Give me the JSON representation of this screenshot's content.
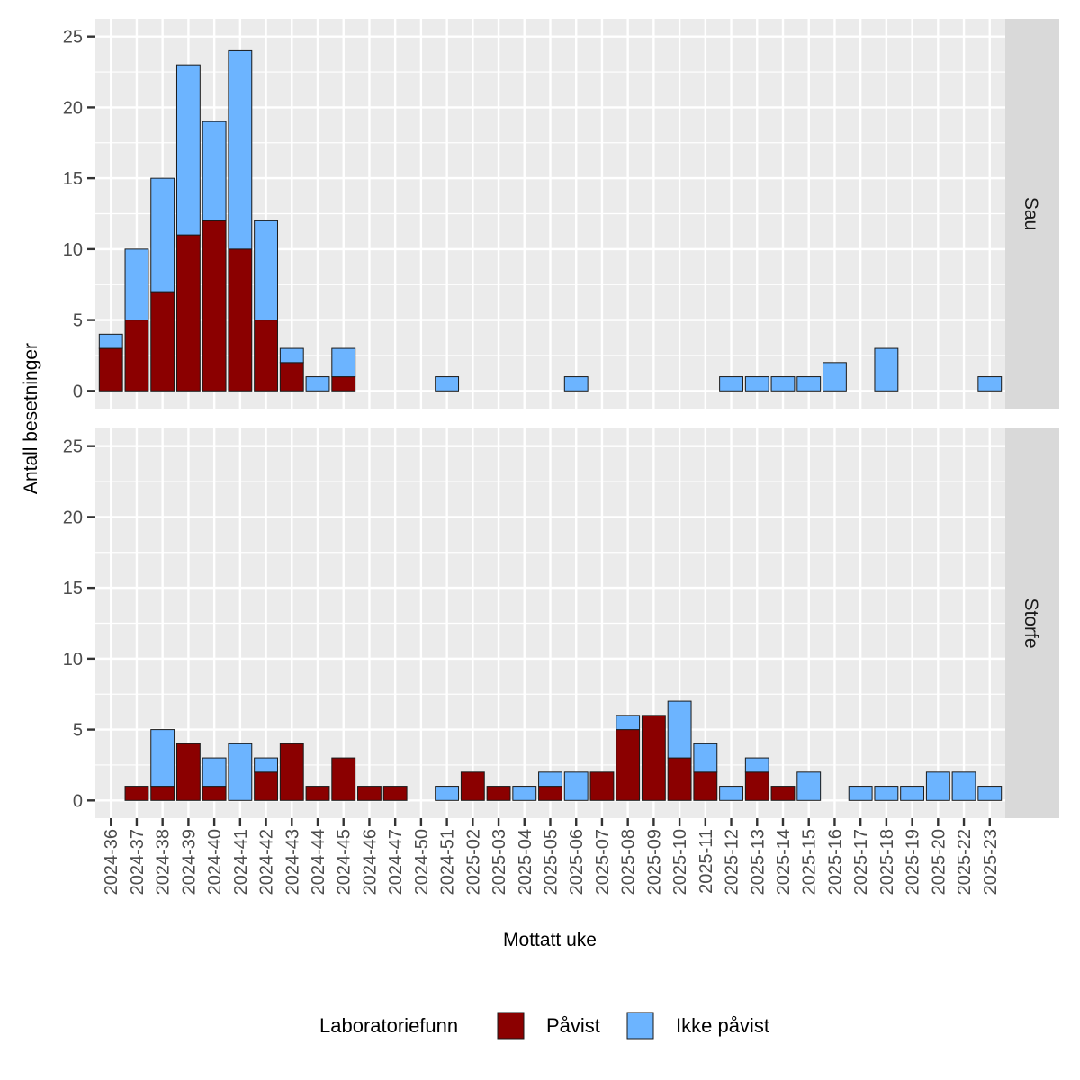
{
  "chart_data": {
    "type": "bar",
    "stacked": true,
    "xlabel": "Mottatt uke",
    "ylabel": "Antall besetninger",
    "ylim": [
      0,
      25
    ],
    "yticks": [
      0,
      5,
      10,
      15,
      20,
      25
    ],
    "grid": true,
    "categories": [
      "2024-36",
      "2024-37",
      "2024-38",
      "2024-39",
      "2024-40",
      "2024-41",
      "2024-42",
      "2024-43",
      "2024-44",
      "2024-45",
      "2024-46",
      "2024-47",
      "2024-50",
      "2024-51",
      "2025-02",
      "2025-03",
      "2025-04",
      "2025-05",
      "2025-06",
      "2025-07",
      "2025-08",
      "2025-09",
      "2025-10",
      "2025-11",
      "2025-12",
      "2025-13",
      "2025-14",
      "2025-15",
      "2025-16",
      "2025-17",
      "2025-18",
      "2025-19",
      "2025-20",
      "2025-22",
      "2025-23"
    ],
    "legend": {
      "title": "Laboratoriefunn",
      "position": "bottom",
      "entries": [
        {
          "name": "Påvist",
          "color": "#8B0000"
        },
        {
          "name": "Ikke påvist",
          "color": "#6CB4FF"
        }
      ]
    },
    "panels": [
      {
        "name": "Sau",
        "series": [
          {
            "name": "Påvist",
            "values": [
              3,
              5,
              7,
              11,
              12,
              10,
              5,
              2,
              0,
              1,
              0,
              0,
              0,
              0,
              0,
              0,
              0,
              0,
              0,
              0,
              0,
              0,
              0,
              0,
              0,
              0,
              0,
              0,
              0,
              0,
              0,
              0,
              0,
              0,
              0
            ]
          },
          {
            "name": "Ikke påvist",
            "values": [
              1,
              5,
              8,
              12,
              7,
              14,
              7,
              1,
              1,
              2,
              0,
              0,
              0,
              1,
              0,
              0,
              0,
              0,
              1,
              0,
              0,
              0,
              0,
              0,
              1,
              1,
              1,
              1,
              2,
              0,
              3,
              0,
              0,
              0,
              1
            ]
          }
        ]
      },
      {
        "name": "Storfe",
        "series": [
          {
            "name": "Påvist",
            "values": [
              0,
              1,
              1,
              4,
              1,
              0,
              2,
              4,
              1,
              3,
              1,
              1,
              0,
              0,
              2,
              1,
              0,
              1,
              0,
              2,
              5,
              6,
              3,
              2,
              0,
              2,
              1,
              0,
              0,
              0,
              0,
              0,
              0,
              0,
              0
            ]
          },
          {
            "name": "Ikke påvist",
            "values": [
              0,
              0,
              4,
              0,
              2,
              4,
              1,
              0,
              0,
              0,
              0,
              0,
              0,
              1,
              0,
              0,
              1,
              1,
              2,
              0,
              1,
              0,
              4,
              2,
              1,
              1,
              0,
              2,
              0,
              1,
              1,
              1,
              2,
              2,
              1
            ]
          }
        ]
      }
    ]
  }
}
